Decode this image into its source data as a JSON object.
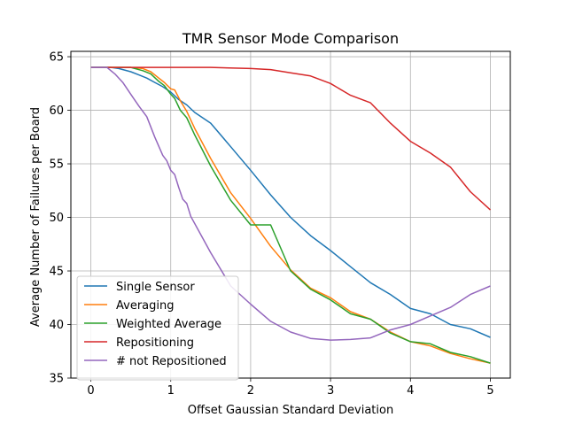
{
  "chart_data": {
    "type": "line",
    "title": "TMR Sensor Mode Comparison",
    "xlabel": "Offset Gaussian Standard Deviation",
    "ylabel": "Average Number of Failures per Board",
    "xlim": [
      -0.25,
      5.25
    ],
    "ylim": [
      35,
      65.5
    ],
    "xticks": [
      0,
      1,
      2,
      3,
      4,
      5
    ],
    "yticks": [
      35,
      40,
      45,
      50,
      55,
      60,
      65
    ],
    "grid": true,
    "legend_position": "lower-left",
    "series": [
      {
        "name": "Single Sensor",
        "color": "#1f77b4",
        "points": [
          [
            0,
            64
          ],
          [
            0.25,
            64
          ],
          [
            0.35,
            63.9
          ],
          [
            0.5,
            63.6
          ],
          [
            0.6,
            63.3
          ],
          [
            0.7,
            63
          ],
          [
            0.8,
            62.6
          ],
          [
            0.9,
            62.2
          ],
          [
            1.0,
            61.7
          ],
          [
            1.1,
            61.0
          ],
          [
            1.2,
            60.5
          ],
          [
            1.3,
            59.8
          ],
          [
            1.5,
            58.8
          ],
          [
            1.75,
            56.6
          ],
          [
            2.0,
            54.4
          ],
          [
            2.25,
            52.1
          ],
          [
            2.5,
            50.0
          ],
          [
            2.75,
            48.3
          ],
          [
            3.0,
            46.9
          ],
          [
            3.25,
            45.4
          ],
          [
            3.5,
            43.9
          ],
          [
            3.75,
            42.8
          ],
          [
            4.0,
            41.5
          ],
          [
            4.25,
            41.0
          ],
          [
            4.5,
            40.0
          ],
          [
            4.75,
            39.6
          ],
          [
            5.0,
            38.8
          ]
        ]
      },
      {
        "name": "Averaging",
        "color": "#ff7f0e",
        "points": [
          [
            0,
            64
          ],
          [
            0.5,
            64
          ],
          [
            0.65,
            63.9
          ],
          [
            0.75,
            63.6
          ],
          [
            0.85,
            63.0
          ],
          [
            0.92,
            62.6
          ],
          [
            1.0,
            62.0
          ],
          [
            1.05,
            61.9
          ],
          [
            1.12,
            60.9
          ],
          [
            1.2,
            59.9
          ],
          [
            1.3,
            58.3
          ],
          [
            1.5,
            55.5
          ],
          [
            1.75,
            52.3
          ],
          [
            2.0,
            49.9
          ],
          [
            2.25,
            47.3
          ],
          [
            2.5,
            45.1
          ],
          [
            2.75,
            43.4
          ],
          [
            3.0,
            42.5
          ],
          [
            3.25,
            41.2
          ],
          [
            3.5,
            40.5
          ],
          [
            3.75,
            39.3
          ],
          [
            4.0,
            38.4
          ],
          [
            4.25,
            38.0
          ],
          [
            4.5,
            37.3
          ],
          [
            4.75,
            36.8
          ],
          [
            5.0,
            36.4
          ]
        ]
      },
      {
        "name": "Weighted Average",
        "color": "#2ca02c",
        "points": [
          [
            0,
            64
          ],
          [
            0.5,
            64
          ],
          [
            0.65,
            63.7
          ],
          [
            0.75,
            63.4
          ],
          [
            0.85,
            62.7
          ],
          [
            0.92,
            62.3
          ],
          [
            1.0,
            61.5
          ],
          [
            1.05,
            61.1
          ],
          [
            1.12,
            60.0
          ],
          [
            1.2,
            59.3
          ],
          [
            1.3,
            57.7
          ],
          [
            1.5,
            54.8
          ],
          [
            1.75,
            51.6
          ],
          [
            2.0,
            49.3
          ],
          [
            2.25,
            49.3
          ],
          [
            2.5,
            45.0
          ],
          [
            2.75,
            43.3
          ],
          [
            3.0,
            42.3
          ],
          [
            3.25,
            41.0
          ],
          [
            3.5,
            40.5
          ],
          [
            3.75,
            39.2
          ],
          [
            4.0,
            38.4
          ],
          [
            4.25,
            38.2
          ],
          [
            4.5,
            37.4
          ],
          [
            4.75,
            37.0
          ],
          [
            5.0,
            36.4
          ]
        ]
      },
      {
        "name": "Repositioning",
        "color": "#d62728",
        "points": [
          [
            0,
            64
          ],
          [
            1.0,
            64
          ],
          [
            1.5,
            64
          ],
          [
            2.0,
            63.9
          ],
          [
            2.25,
            63.8
          ],
          [
            2.5,
            63.5
          ],
          [
            2.75,
            63.2
          ],
          [
            3.0,
            62.5
          ],
          [
            3.25,
            61.4
          ],
          [
            3.5,
            60.7
          ],
          [
            3.75,
            58.8
          ],
          [
            4.0,
            57.1
          ],
          [
            4.25,
            56.0
          ],
          [
            4.5,
            54.7
          ],
          [
            4.75,
            52.4
          ],
          [
            5.0,
            50.7
          ]
        ]
      },
      {
        "name": "# not Repositioned",
        "color": "#9467bd",
        "points": [
          [
            0,
            64
          ],
          [
            0.2,
            64
          ],
          [
            0.3,
            63.4
          ],
          [
            0.4,
            62.6
          ],
          [
            0.5,
            61.5
          ],
          [
            0.6,
            60.4
          ],
          [
            0.7,
            59.4
          ],
          [
            0.8,
            57.5
          ],
          [
            0.9,
            55.8
          ],
          [
            0.95,
            55.3
          ],
          [
            1.0,
            54.4
          ],
          [
            1.05,
            54.0
          ],
          [
            1.1,
            52.8
          ],
          [
            1.15,
            51.7
          ],
          [
            1.2,
            51.3
          ],
          [
            1.25,
            50.1
          ],
          [
            1.5,
            46.7
          ],
          [
            1.75,
            43.6
          ],
          [
            2.0,
            41.9
          ],
          [
            2.25,
            40.3
          ],
          [
            2.5,
            39.3
          ],
          [
            2.75,
            38.7
          ],
          [
            3.0,
            38.55
          ],
          [
            3.25,
            38.6
          ],
          [
            3.5,
            38.75
          ],
          [
            3.75,
            39.5
          ],
          [
            4.0,
            40.0
          ],
          [
            4.25,
            40.8
          ],
          [
            4.5,
            41.6
          ],
          [
            4.75,
            42.8
          ],
          [
            5.0,
            43.6
          ]
        ]
      }
    ]
  }
}
